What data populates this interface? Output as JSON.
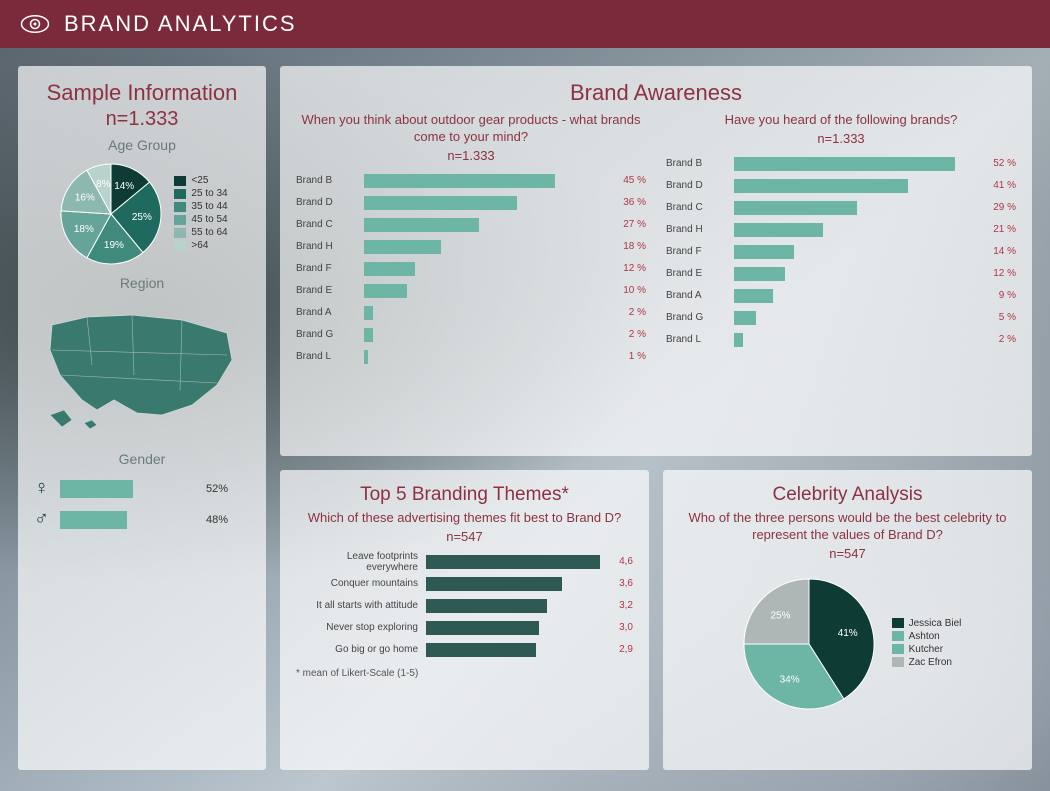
{
  "header": {
    "title": "BRAND ANALYTICS"
  },
  "colors": {
    "header_bg": "#7a2a3a",
    "accent_text": "#8c3243",
    "bar_teal": "#6db5a5",
    "bar_dark_teal": "#2e5a53",
    "value_red": "#b03548"
  },
  "sample": {
    "title": "Sample Information",
    "n_label": "n=1.333",
    "age_group": {
      "label": "Age Group",
      "slices": [
        {
          "label": "<25",
          "value": 14,
          "color": "#0e3b34"
        },
        {
          "label": "25 to 34",
          "value": 25,
          "color": "#1f6a5e"
        },
        {
          "label": "35 to 44",
          "value": 19,
          "color": "#3f8a7d"
        },
        {
          "label": "45 to 54",
          "value": 18,
          "color": "#66a398"
        },
        {
          "label": "55 to 64",
          "value": 16,
          "color": "#8cb8b0"
        },
        {
          "label": ">64",
          "value": 8,
          "color": "#b8d2cc"
        }
      ]
    },
    "region": {
      "label": "Region",
      "map_fill": "#3a7a6e"
    },
    "gender": {
      "label": "Gender",
      "rows": [
        {
          "symbol": "♀",
          "value": 52,
          "label": "52%"
        },
        {
          "symbol": "♂",
          "value": 48,
          "label": "48%"
        }
      ]
    }
  },
  "awareness": {
    "title": "Brand Awareness",
    "left": {
      "question": "When you think about outdoor gear products  - what brands come to your mind?",
      "n": "n=1.333",
      "max": 60,
      "bars": [
        {
          "label": "Brand B",
          "value": 45,
          "text": "45 %"
        },
        {
          "label": "Brand D",
          "value": 36,
          "text": "36 %"
        },
        {
          "label": "Brand C",
          "value": 27,
          "text": "27 %"
        },
        {
          "label": "Brand H",
          "value": 18,
          "text": "18 %"
        },
        {
          "label": "Brand F",
          "value": 12,
          "text": "12 %"
        },
        {
          "label": "Brand E",
          "value": 10,
          "text": "10 %"
        },
        {
          "label": "Brand A",
          "value": 2,
          "text": "2 %"
        },
        {
          "label": "Brand G",
          "value": 2,
          "text": "2 %"
        },
        {
          "label": "Brand L",
          "value": 1,
          "text": "1 %"
        }
      ]
    },
    "right": {
      "question": "Have you heard of the following brands?",
      "n": "n=1.333",
      "max": 60,
      "bars": [
        {
          "label": "Brand B",
          "value": 52,
          "text": "52 %"
        },
        {
          "label": "Brand D",
          "value": 41,
          "text": "41 %"
        },
        {
          "label": "Brand C",
          "value": 29,
          "text": "29 %"
        },
        {
          "label": "Brand H",
          "value": 21,
          "text": "21 %"
        },
        {
          "label": "Brand F",
          "value": 14,
          "text": "14 %"
        },
        {
          "label": "Brand E",
          "value": 12,
          "text": "12 %"
        },
        {
          "label": "Brand A",
          "value": 9,
          "text": "9 %"
        },
        {
          "label": "Brand G",
          "value": 5,
          "text": "5 %"
        },
        {
          "label": "Brand L",
          "value": 2,
          "text": "2 %"
        }
      ]
    }
  },
  "themes": {
    "title": "Top 5 Branding Themes*",
    "question": "Which of these advertising themes fit best to Brand D?",
    "n": "n=547",
    "max": 5,
    "bars": [
      {
        "label": "Leave footprints everywhere",
        "value": 4.6,
        "text": "4,6"
      },
      {
        "label": "Conquer mountains",
        "value": 3.6,
        "text": "3,6"
      },
      {
        "label": "It all starts with attitude",
        "value": 3.2,
        "text": "3,2"
      },
      {
        "label": "Never stop exploring",
        "value": 3.0,
        "text": "3,0"
      },
      {
        "label": "Go big or go home",
        "value": 2.9,
        "text": "2,9"
      }
    ],
    "footnote": "* mean of Likert-Scale (1-5)"
  },
  "celebrity": {
    "title": "Celebrity Analysis",
    "question": "Who of the three persons would be the best celebrity to represent the values of Brand D?",
    "n": "n=547",
    "slices": [
      {
        "label": "Jessica Biel",
        "value": 41,
        "color": "#0e3b34"
      },
      {
        "label": "Ashton Kutcher",
        "value": 34,
        "color": "#6db5a5"
      },
      {
        "label": "Zac Efron",
        "value": 25,
        "color": "#aeb6b6"
      }
    ],
    "legend": [
      {
        "label": "Jessica Biel",
        "color": "#0e3b34"
      },
      {
        "label": "Ashton",
        "color": "#6db5a5"
      },
      {
        "label": "Kutcher",
        "color": "#6db5a5"
      },
      {
        "label": "Zac Efron",
        "color": "#aeb6b6"
      }
    ]
  }
}
